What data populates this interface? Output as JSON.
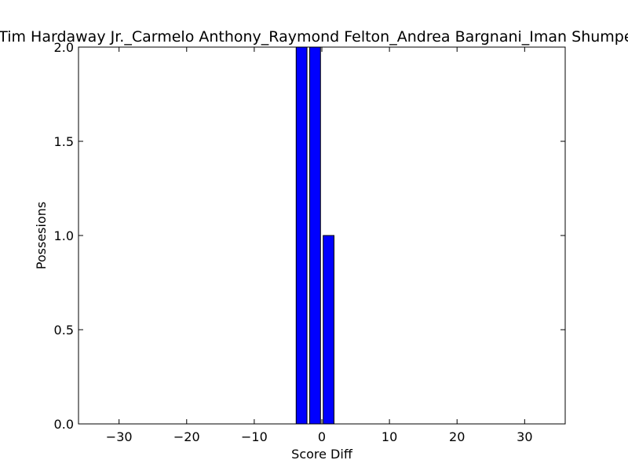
{
  "chart_data": {
    "type": "bar",
    "title": "Tim Hardaway Jr._Carmelo Anthony_Raymond Felton_Andrea Bargnani_Iman Shumpert",
    "xlabel": "Score Diff",
    "ylabel": "Possesions",
    "xlim": [
      -36,
      36
    ],
    "ylim": [
      0,
      2
    ],
    "xticks": [
      -30,
      -20,
      -10,
      0,
      10,
      20,
      30
    ],
    "xtick_labels": [
      "−30",
      "−20",
      "−10",
      "0",
      "10",
      "20",
      "30"
    ],
    "yticks": [
      0,
      0.5,
      1,
      1.5,
      2
    ],
    "ytick_labels": [
      "0.0",
      "0.5",
      "1.0",
      "1.5",
      "2.0"
    ],
    "bar_width": 1.6,
    "x": [
      -3,
      -1,
      1
    ],
    "values": [
      2,
      2,
      1
    ],
    "bar_color": "#0000ff",
    "edge_color": "#000000",
    "grid": false
  }
}
